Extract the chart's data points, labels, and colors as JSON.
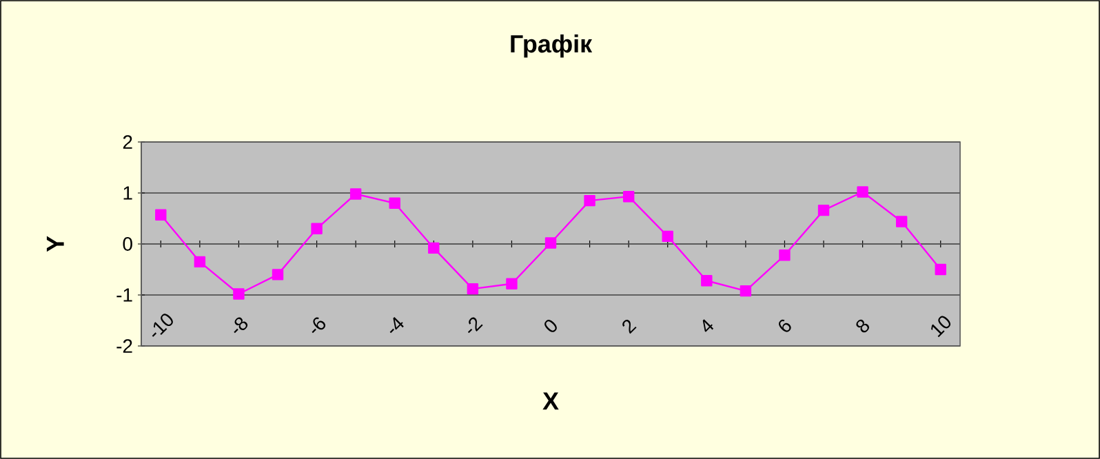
{
  "chart_data": {
    "type": "line",
    "title": "Графік",
    "xlabel": "X",
    "ylabel": "Y",
    "categories": [
      "-10",
      null,
      "-8",
      null,
      "-6",
      null,
      "-4",
      null,
      "-2",
      null,
      "0",
      null,
      "2",
      null,
      "4",
      null,
      "6",
      null,
      "8",
      null,
      "10"
    ],
    "series": [
      {
        "color": "#ff00ff",
        "values": [
          0.57,
          -0.35,
          -0.98,
          -0.6,
          0.3,
          0.98,
          0.8,
          -0.08,
          -0.88,
          -0.78,
          0.02,
          0.85,
          0.93,
          0.15,
          -0.72,
          -0.92,
          -0.22,
          0.66,
          1.02,
          0.44,
          -0.5
        ]
      }
    ],
    "ylim": [
      -2,
      2
    ],
    "yticks": [
      -2,
      -1,
      0,
      1,
      2
    ],
    "grid": "y",
    "marker": "square",
    "line_style": "solid"
  }
}
